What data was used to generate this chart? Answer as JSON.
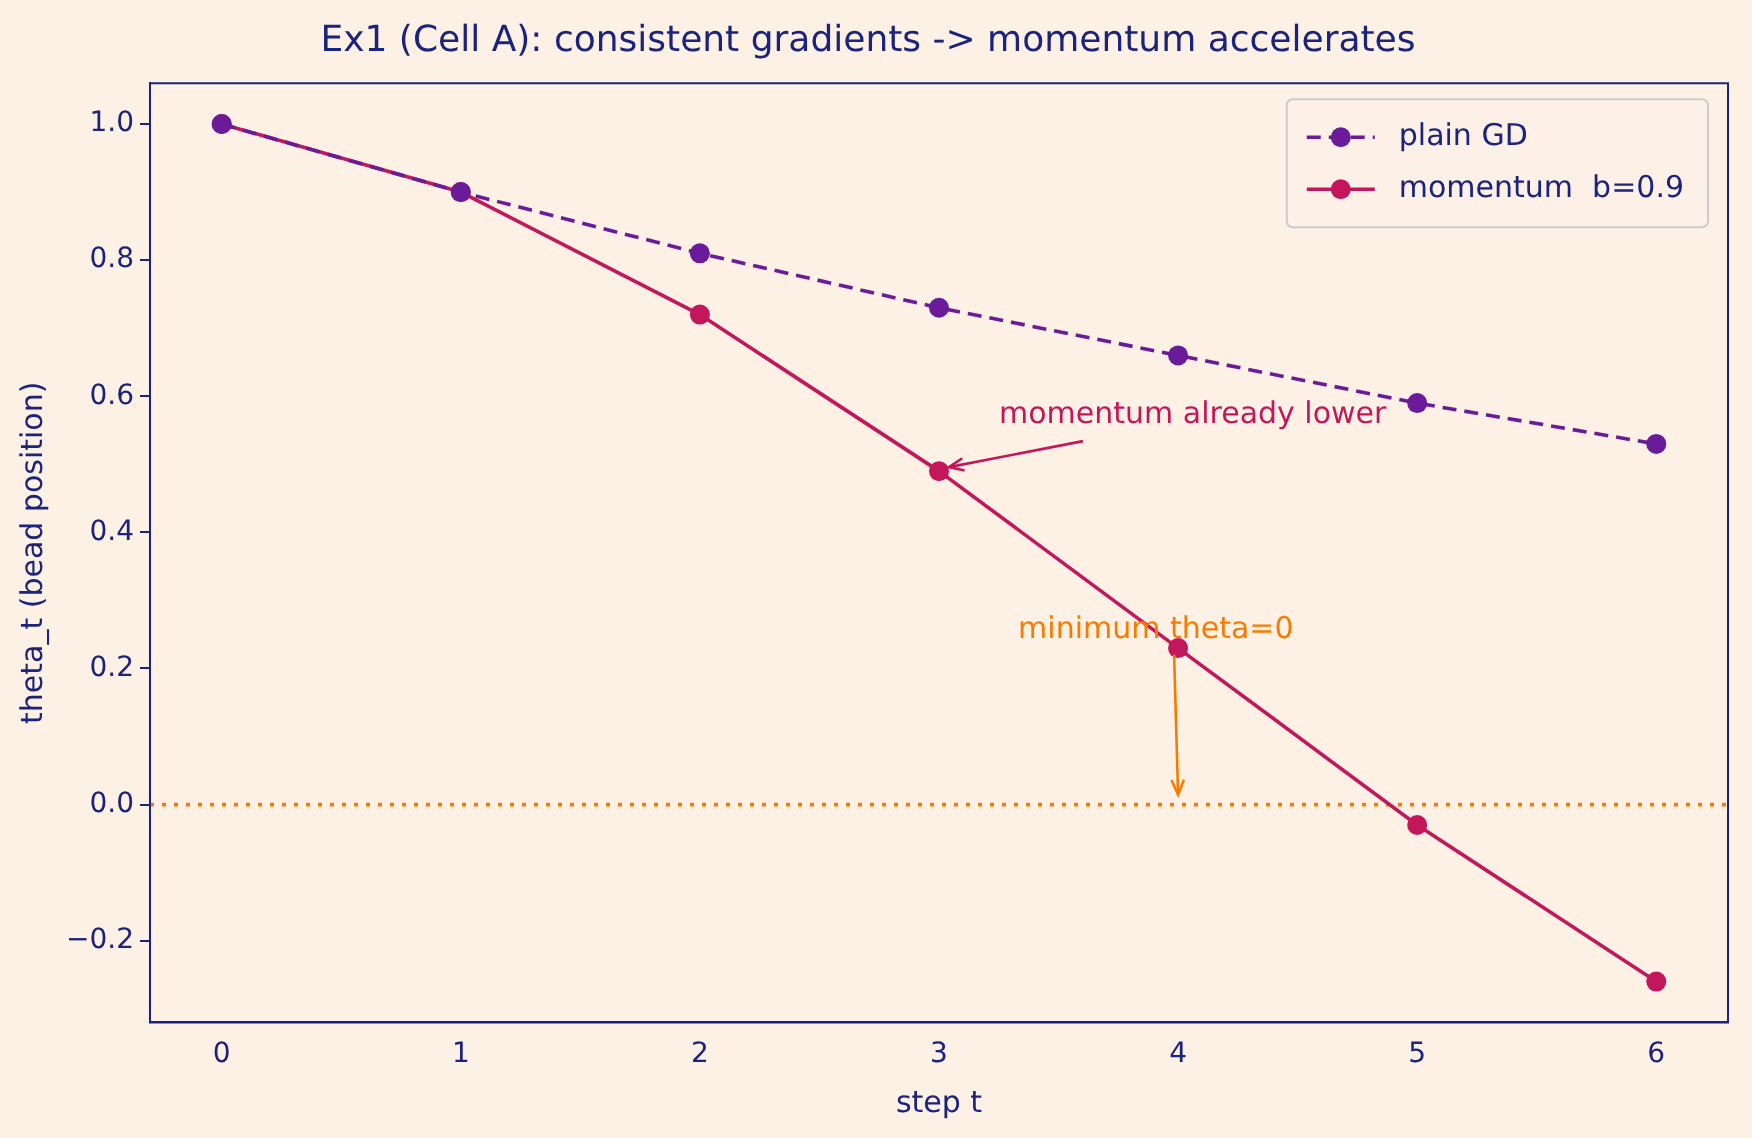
{
  "chart_data": {
    "type": "line",
    "title": "Ex1 (Cell A): consistent gradients -> momentum accelerates",
    "xlabel": "step t",
    "ylabel": "theta_t (bead position)",
    "x": [
      0,
      1,
      2,
      3,
      4,
      5,
      6
    ],
    "series": [
      {
        "name": "plain GD",
        "color": "#6a1b9a",
        "values": [
          1.0,
          0.9,
          0.81,
          0.73,
          0.66,
          0.59,
          0.53
        ],
        "line_style": "dashed",
        "marker": "circle"
      },
      {
        "name": "momentum  b=0.9",
        "color": "#c2185b",
        "values": [
          1.0,
          0.9,
          0.72,
          0.49,
          0.23,
          -0.03,
          -0.26
        ],
        "line_style": "solid",
        "marker": "circle"
      }
    ],
    "xlim": [
      -0.3,
      6.3
    ],
    "xticks": [
      0,
      1,
      2,
      3,
      4,
      5,
      6
    ],
    "ylim": [
      -0.32,
      1.06
    ],
    "yticks": [
      {
        "value": -0.2,
        "label": "−0.2"
      },
      {
        "value": 0,
        "label": "0.0"
      },
      {
        "value": 0.2,
        "label": "0.2"
      },
      {
        "value": 0.4,
        "label": "0.4"
      },
      {
        "value": 0.6,
        "label": "0.6"
      },
      {
        "value": 0.8,
        "label": "0.8"
      },
      {
        "value": 1,
        "label": "1.0"
      }
    ],
    "ref_lines": [
      {
        "axis": "y",
        "value": 0,
        "color": "#f57c00",
        "line_style": "dotted"
      }
    ],
    "annotations": [
      {
        "text": "momentum already lower",
        "x": 3,
        "y": 0.49
      },
      {
        "text": "minimum theta=0",
        "x": 4,
        "y": 0
      }
    ],
    "grid": false,
    "legend": "top right"
  }
}
